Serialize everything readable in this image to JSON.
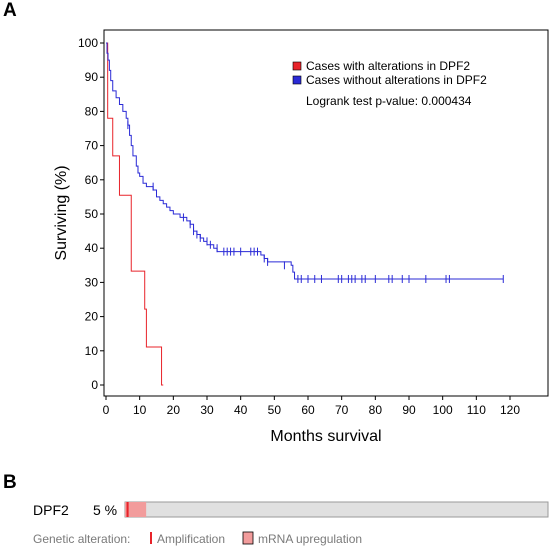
{
  "panels": {
    "a": "A",
    "b": "B"
  },
  "chart_data": {
    "type": "line",
    "subtype": "kaplan-meier",
    "xlabel": "Months survival",
    "ylabel": "Surviving (%)",
    "xlim": [
      0,
      120
    ],
    "ylim": [
      0,
      100
    ],
    "xticks": [
      "0",
      "10",
      "20",
      "30",
      "40",
      "50",
      "60",
      "70",
      "80",
      "90",
      "100",
      "110",
      "120"
    ],
    "yticks": [
      "0",
      "10",
      "20",
      "30",
      "40",
      "50",
      "60",
      "70",
      "80",
      "90",
      "100"
    ],
    "legend_position": "top-right",
    "logrank": "Logrank test p-value: 0.000434",
    "series": [
      {
        "name": "Cases with alterations in DPF2",
        "color": "#e8232a",
        "points": [
          [
            0,
            100
          ],
          [
            0.5,
            78
          ],
          [
            2,
            67
          ],
          [
            4,
            55.5
          ],
          [
            7.5,
            33.3
          ],
          [
            11.5,
            22.2
          ],
          [
            12,
            11.1
          ],
          [
            16.5,
            0
          ],
          [
            17,
            0
          ]
        ],
        "censored": []
      },
      {
        "name": "Cases without alterations in DPF2",
        "color": "#2a2ad6",
        "points": [
          [
            0,
            100
          ],
          [
            0.3,
            97
          ],
          [
            0.6,
            95
          ],
          [
            1,
            92
          ],
          [
            1.4,
            89
          ],
          [
            2,
            86
          ],
          [
            3,
            84
          ],
          [
            4,
            82
          ],
          [
            5,
            80
          ],
          [
            6,
            78
          ],
          [
            6.5,
            76
          ],
          [
            7,
            73
          ],
          [
            7.5,
            70
          ],
          [
            8,
            67
          ],
          [
            9,
            64
          ],
          [
            9.5,
            62
          ],
          [
            10,
            61
          ],
          [
            11,
            59
          ],
          [
            12,
            58
          ],
          [
            14,
            57
          ],
          [
            15,
            55
          ],
          [
            16,
            54
          ],
          [
            17,
            53
          ],
          [
            18,
            52
          ],
          [
            19,
            51
          ],
          [
            20,
            50
          ],
          [
            22,
            49
          ],
          [
            24,
            48
          ],
          [
            25,
            47
          ],
          [
            26,
            45
          ],
          [
            27,
            44
          ],
          [
            28,
            43
          ],
          [
            29,
            42
          ],
          [
            30,
            41
          ],
          [
            32,
            40
          ],
          [
            33,
            39
          ],
          [
            46,
            38
          ],
          [
            47,
            37
          ],
          [
            48,
            36
          ],
          [
            55,
            35
          ],
          [
            55.5,
            33
          ],
          [
            56,
            31
          ],
          [
            118,
            31
          ]
        ],
        "censored": [
          [
            6.5,
            76
          ],
          [
            9.5,
            63
          ],
          [
            14,
            58
          ],
          [
            23,
            49
          ],
          [
            25,
            47
          ],
          [
            26,
            45
          ],
          [
            27,
            44
          ],
          [
            28,
            43
          ],
          [
            30,
            42
          ],
          [
            31,
            41
          ],
          [
            33,
            40
          ],
          [
            35,
            39
          ],
          [
            36,
            39
          ],
          [
            37,
            39
          ],
          [
            38,
            39
          ],
          [
            40,
            39
          ],
          [
            43,
            39
          ],
          [
            44,
            39
          ],
          [
            45,
            39
          ],
          [
            47,
            37
          ],
          [
            48,
            36
          ],
          [
            53,
            35
          ],
          [
            57,
            31
          ],
          [
            58,
            31
          ],
          [
            60,
            31
          ],
          [
            62,
            31
          ],
          [
            64,
            31
          ],
          [
            69,
            31
          ],
          [
            70,
            31
          ],
          [
            72,
            31
          ],
          [
            73,
            31
          ],
          [
            74,
            31
          ],
          [
            76,
            31
          ],
          [
            77,
            31
          ],
          [
            80,
            31
          ],
          [
            84,
            31
          ],
          [
            85,
            31
          ],
          [
            88,
            31
          ],
          [
            90,
            31
          ],
          [
            95,
            31
          ],
          [
            101,
            31
          ],
          [
            102,
            31
          ],
          [
            118,
            31
          ]
        ]
      }
    ]
  },
  "oncoprint": {
    "gene": "DPF2",
    "percent": "5 %",
    "altered_fraction": 0.05,
    "amplification_fraction": 0.01,
    "colors": {
      "track": "#e0e0e0",
      "amplification": "#e8232a",
      "mrna": "#f29c9c"
    },
    "legend_label": "Genetic alteration:",
    "legend_items": [
      "Amplification",
      "mRNA upregulation"
    ]
  }
}
